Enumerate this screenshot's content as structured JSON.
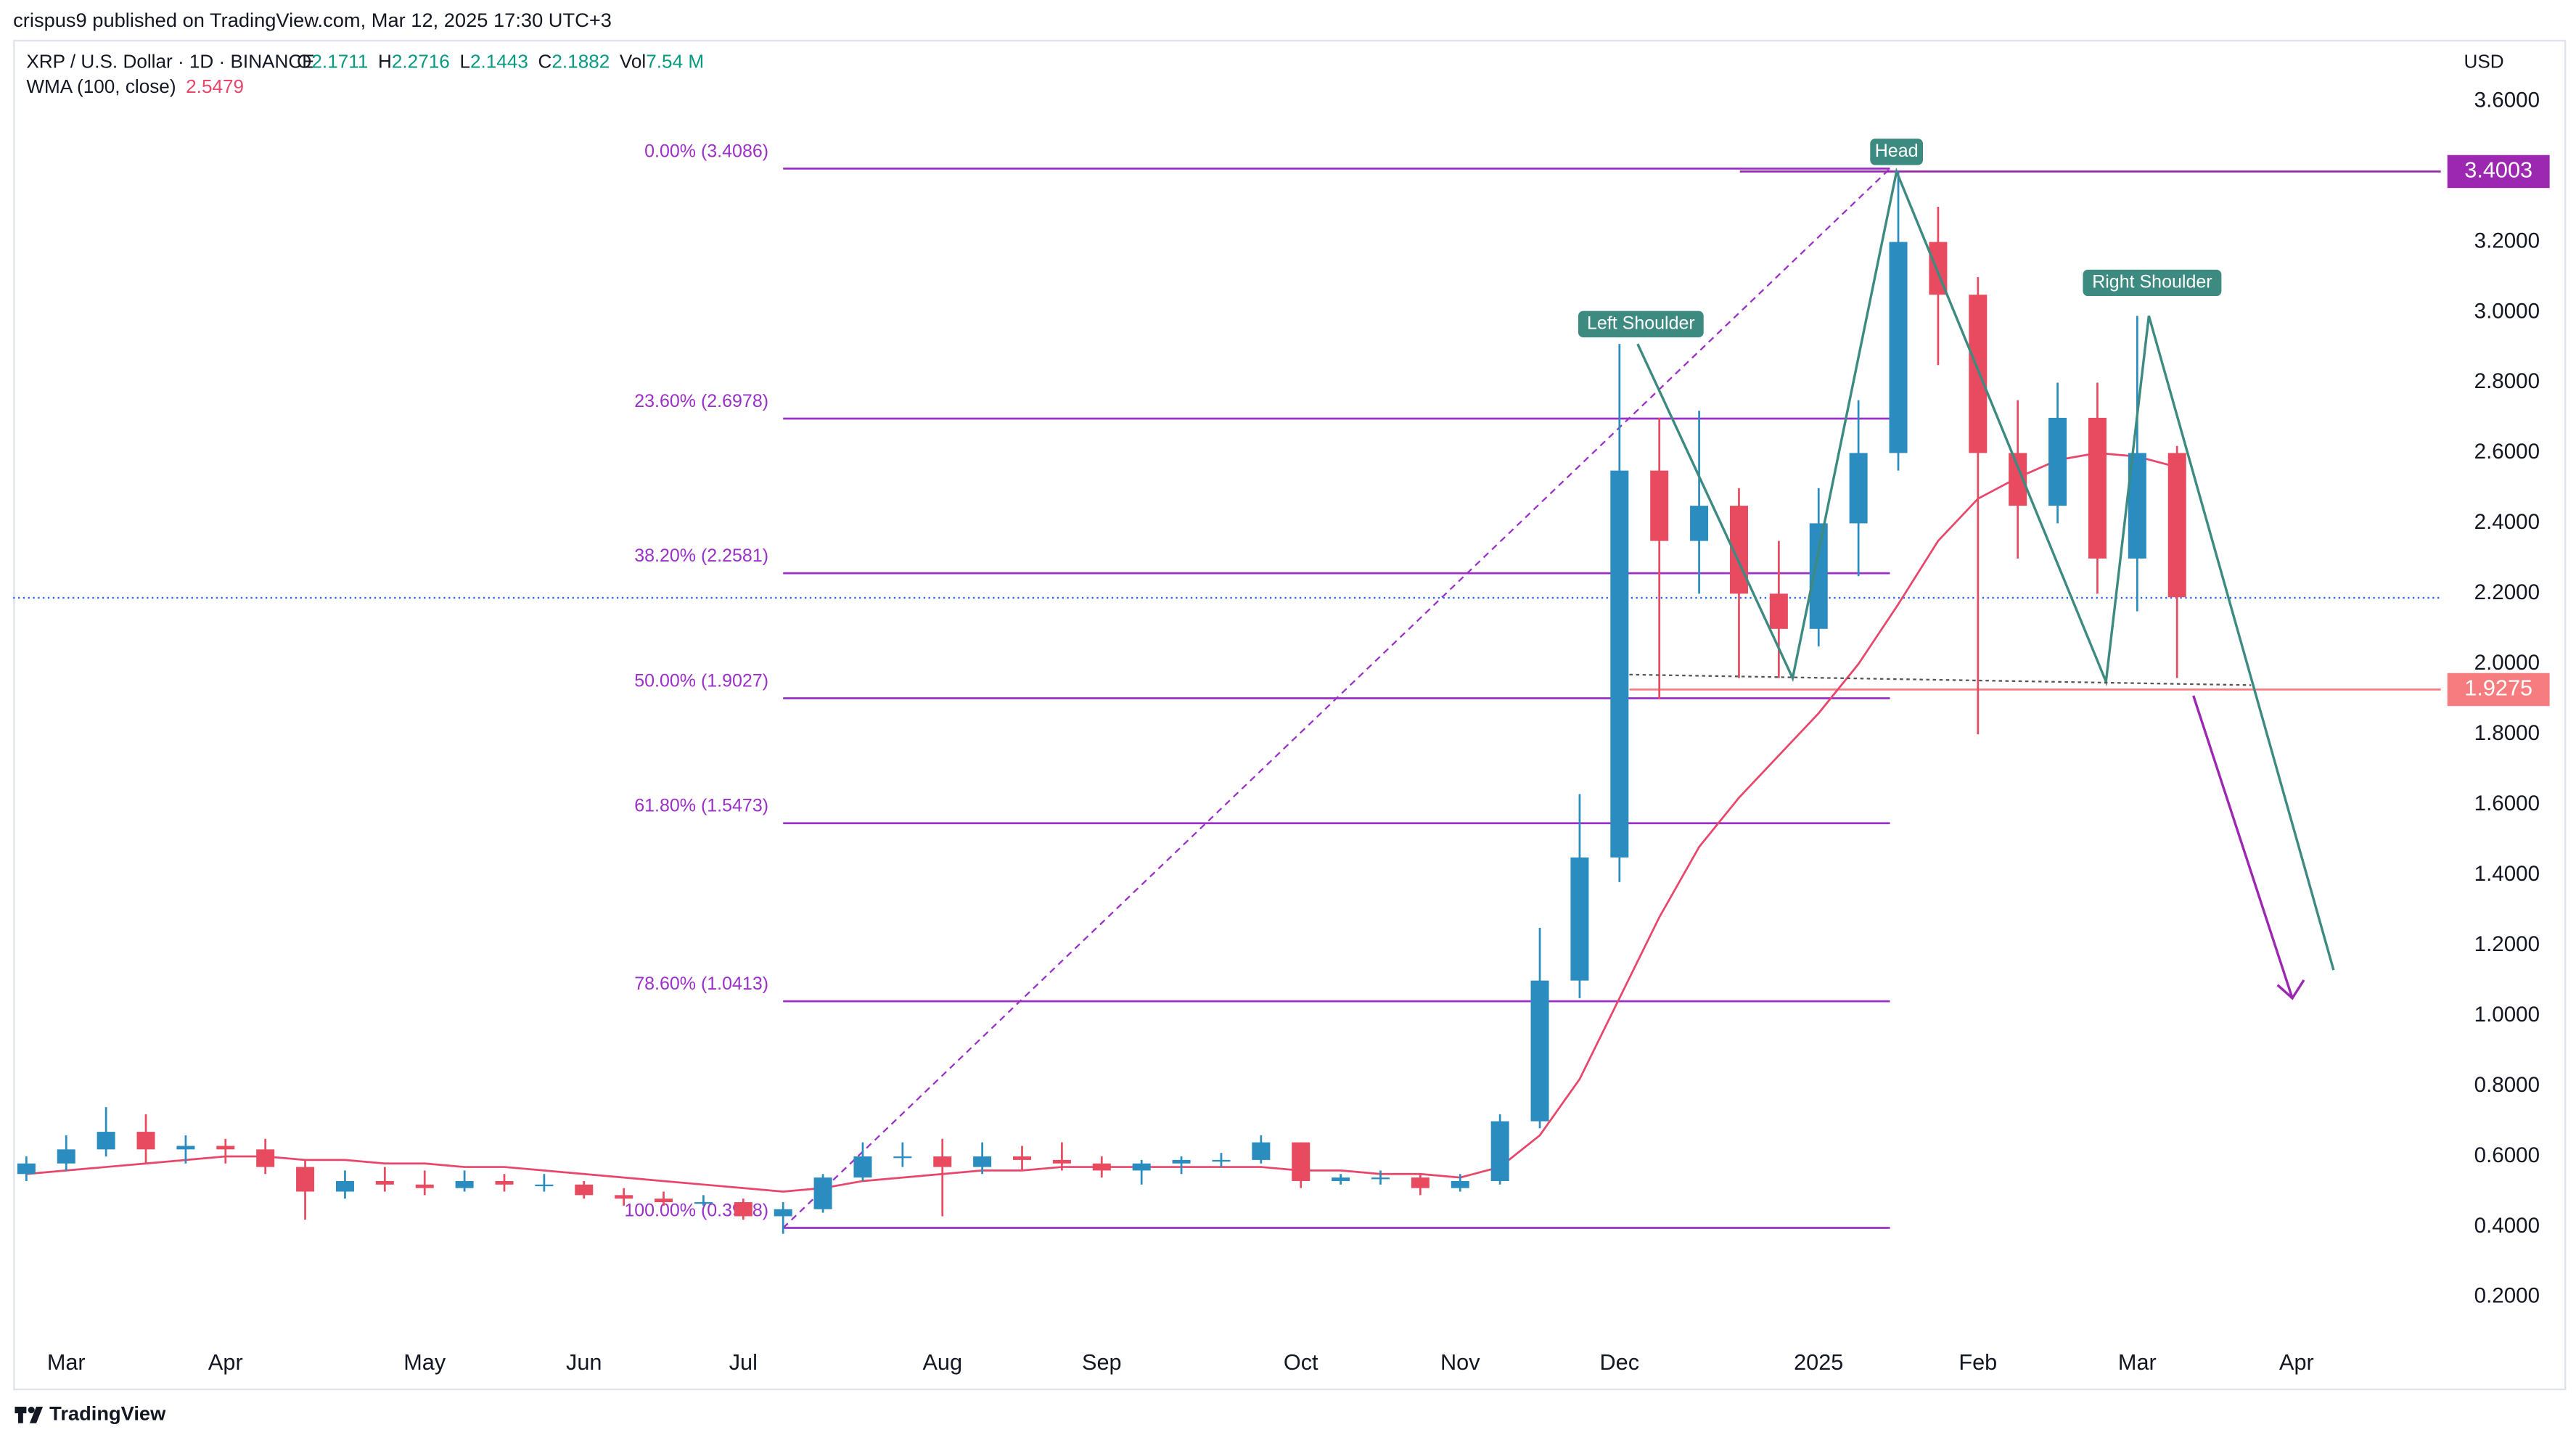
{
  "header": {
    "publisher": "crispus9 published on TradingView.com, Mar 12, 2025 17:30 UTC+3"
  },
  "footer": {
    "brand": "TradingView"
  },
  "chart_data": {
    "type": "candlestick",
    "symbol": "XRP / U.S. Dollar · 1D · BINANCE",
    "quote": [
      {
        "key": "O",
        "value": 2.1711
      },
      {
        "key": "H",
        "value": 2.2716
      },
      {
        "key": "L",
        "value": 2.1443
      },
      {
        "key": "C",
        "value": 2.1882
      },
      {
        "key": "Vol",
        "value": "7.54 M"
      }
    ],
    "currency": "USD",
    "indicator": {
      "name": "WMA (100, close)",
      "value": 2.5479,
      "color": "#e8466b",
      "values": [
        0.55,
        0.56,
        0.57,
        0.58,
        0.59,
        0.6,
        0.6,
        0.59,
        0.59,
        0.58,
        0.58,
        0.57,
        0.57,
        0.56,
        0.55,
        0.54,
        0.53,
        0.52,
        0.51,
        0.5,
        0.51,
        0.53,
        0.54,
        0.55,
        0.56,
        0.56,
        0.57,
        0.57,
        0.57,
        0.57,
        0.57,
        0.57,
        0.56,
        0.56,
        0.55,
        0.55,
        0.54,
        0.57,
        0.66,
        0.82,
        1.05,
        1.28,
        1.48,
        1.62,
        1.74,
        1.86,
        2.0,
        2.17,
        2.35,
        2.47,
        2.53,
        2.58,
        2.6,
        2.59,
        2.56,
        null,
        null,
        null
      ]
    },
    "categories": [
      null,
      "Mar",
      null,
      null,
      null,
      "Apr",
      null,
      null,
      null,
      null,
      "May",
      null,
      null,
      null,
      "Jun",
      null,
      null,
      null,
      "Jul",
      null,
      null,
      null,
      null,
      "Aug",
      null,
      null,
      null,
      "Sep",
      null,
      null,
      null,
      null,
      "Oct",
      null,
      null,
      null,
      "Nov",
      null,
      null,
      null,
      "Dec",
      null,
      null,
      null,
      null,
      "2025",
      null,
      null,
      null,
      "Feb",
      null,
      null,
      null,
      "Mar",
      null,
      null,
      null,
      "Apr"
    ],
    "open": [
      0.55,
      0.58,
      0.62,
      0.67,
      0.62,
      0.63,
      0.62,
      0.57,
      0.5,
      0.53,
      0.52,
      0.51,
      0.53,
      0.52,
      0.52,
      0.49,
      0.48,
      0.47,
      0.47,
      0.43,
      0.45,
      0.54,
      0.6,
      0.6,
      0.57,
      0.6,
      0.59,
      0.58,
      0.56,
      0.58,
      0.59,
      0.59,
      0.64,
      0.53,
      0.54,
      0.54,
      0.51,
      0.53,
      0.7,
      1.1,
      1.45,
      2.55,
      2.35,
      2.45,
      2.2,
      2.1,
      2.4,
      2.6,
      3.2,
      3.05,
      2.6,
      2.45,
      2.7,
      2.3,
      2.6,
      null,
      null,
      null
    ],
    "high": [
      0.6,
      0.66,
      0.74,
      0.72,
      0.66,
      0.65,
      0.65,
      0.59,
      0.56,
      0.57,
      0.56,
      0.56,
      0.55,
      0.55,
      0.53,
      0.51,
      0.5,
      0.49,
      0.48,
      0.47,
      0.55,
      0.64,
      0.64,
      0.65,
      0.64,
      0.63,
      0.64,
      0.6,
      0.59,
      0.6,
      0.61,
      0.66,
      0.64,
      0.55,
      0.56,
      0.55,
      0.55,
      0.72,
      1.25,
      1.63,
      2.91,
      2.7,
      2.72,
      2.5,
      2.35,
      2.5,
      2.75,
      3.4,
      3.3,
      3.1,
      2.75,
      2.8,
      2.8,
      2.99,
      2.62,
      null,
      null,
      null
    ],
    "low": [
      0.53,
      0.56,
      0.6,
      0.58,
      0.58,
      0.58,
      0.55,
      0.42,
      0.48,
      0.5,
      0.49,
      0.5,
      0.5,
      0.5,
      0.48,
      0.46,
      0.46,
      0.46,
      0.42,
      0.38,
      0.44,
      0.53,
      0.57,
      0.43,
      0.55,
      0.56,
      0.56,
      0.54,
      0.52,
      0.55,
      0.57,
      0.58,
      0.51,
      0.52,
      0.52,
      0.49,
      0.5,
      0.52,
      0.68,
      1.05,
      1.38,
      1.9,
      2.2,
      1.96,
      1.96,
      2.05,
      2.25,
      2.55,
      2.85,
      1.8,
      2.3,
      2.4,
      2.2,
      2.15,
      1.96,
      null,
      null,
      null
    ],
    "close": [
      0.58,
      0.62,
      0.67,
      0.62,
      0.63,
      0.62,
      0.57,
      0.5,
      0.53,
      0.52,
      0.51,
      0.53,
      0.52,
      0.52,
      0.49,
      0.48,
      0.47,
      0.47,
      0.43,
      0.45,
      0.54,
      0.6,
      0.6,
      0.57,
      0.6,
      0.59,
      0.58,
      0.56,
      0.58,
      0.59,
      0.59,
      0.64,
      0.53,
      0.54,
      0.54,
      0.51,
      0.53,
      0.7,
      1.1,
      1.45,
      2.55,
      2.35,
      2.45,
      2.2,
      2.1,
      2.4,
      2.6,
      3.2,
      3.05,
      2.6,
      2.45,
      2.7,
      2.3,
      2.6,
      2.19,
      null,
      null,
      null
    ],
    "up_color": "#2a8cbf",
    "down_color": "#e84a5f",
    "ylim": [
      -0.06,
      3.77
    ],
    "yticks": [
      {
        "value": 3.6,
        "label": "3.6000"
      },
      {
        "value": 3.2,
        "label": "3.2000"
      },
      {
        "value": 3.0,
        "label": "3.0000"
      },
      {
        "value": 2.8,
        "label": "2.8000"
      },
      {
        "value": 2.6,
        "label": "2.6000"
      },
      {
        "value": 2.4,
        "label": "2.4000"
      },
      {
        "value": 2.2,
        "label": "2.2000"
      },
      {
        "value": 2.0,
        "label": "2.0000"
      },
      {
        "value": 1.8,
        "label": "1.8000"
      },
      {
        "value": 1.6,
        "label": "1.6000"
      },
      {
        "value": 1.4,
        "label": "1.4000"
      },
      {
        "value": 1.2,
        "label": "1.2000"
      },
      {
        "value": 1.0,
        "label": "1.0000"
      },
      {
        "value": 0.8,
        "label": "0.8000"
      },
      {
        "value": 0.6,
        "label": "0.6000"
      },
      {
        "value": 0.4,
        "label": "0.4000"
      },
      {
        "value": 0.2,
        "label": "0.2000"
      }
    ],
    "grid": false,
    "fib_color": "#9b30c8",
    "fib_levels": [
      {
        "label": "0.00% (3.4086)",
        "value": 3.4086
      },
      {
        "label": "23.60% (2.6978)",
        "value": 2.6978
      },
      {
        "label": "38.20% (2.2581)",
        "value": 2.2581
      },
      {
        "label": "50.00% (1.9027)",
        "value": 1.9027
      },
      {
        "label": "61.80% (1.5473)",
        "value": 1.5473
      },
      {
        "label": "78.60% (1.0413)",
        "value": 1.0413
      },
      {
        "label": "100.00% (0.3968)",
        "value": 0.3968
      }
    ],
    "price_tags": [
      {
        "value": 3.4003,
        "color": "#9c27b0"
      },
      {
        "value": 1.9275,
        "color": "#f77c80"
      }
    ],
    "pattern_color": "#3d8b80",
    "annotations": [
      {
        "text": "Left Shoulder",
        "value": 2.91
      },
      {
        "text": "Head",
        "value": 3.4
      },
      {
        "text": "Right Shoulder",
        "value": 2.99
      }
    ],
    "pattern": [
      2.91,
      1.96,
      3.4,
      1.95,
      2.99,
      1.13
    ],
    "neckline": [
      1.97,
      1.94
    ],
    "projection": [
      1.91,
      1.05
    ]
  }
}
